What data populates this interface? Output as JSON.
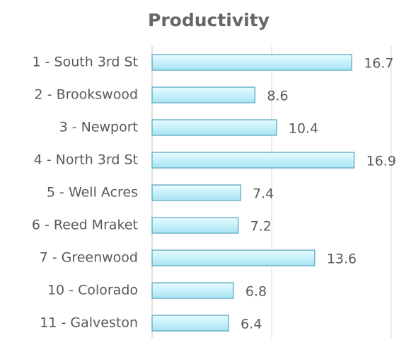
{
  "chart_data": {
    "type": "barh",
    "title": "Productivity",
    "categories": [
      "1 - South 3rd St",
      "2 - Brookswood",
      "3 - Newport",
      "4 - North 3rd St",
      "5 - Well Acres",
      "6 - Reed Mraket",
      "7 - Greenwood",
      "10 - Colorado",
      "11 - Galveston"
    ],
    "values": [
      16.7,
      8.6,
      10.4,
      16.9,
      7.4,
      7.2,
      13.6,
      6.8,
      6.4
    ],
    "color": "#c6f1fb",
    "xlim": [
      0,
      20
    ],
    "xticks": [
      0,
      10,
      20
    ],
    "grid": true
  }
}
